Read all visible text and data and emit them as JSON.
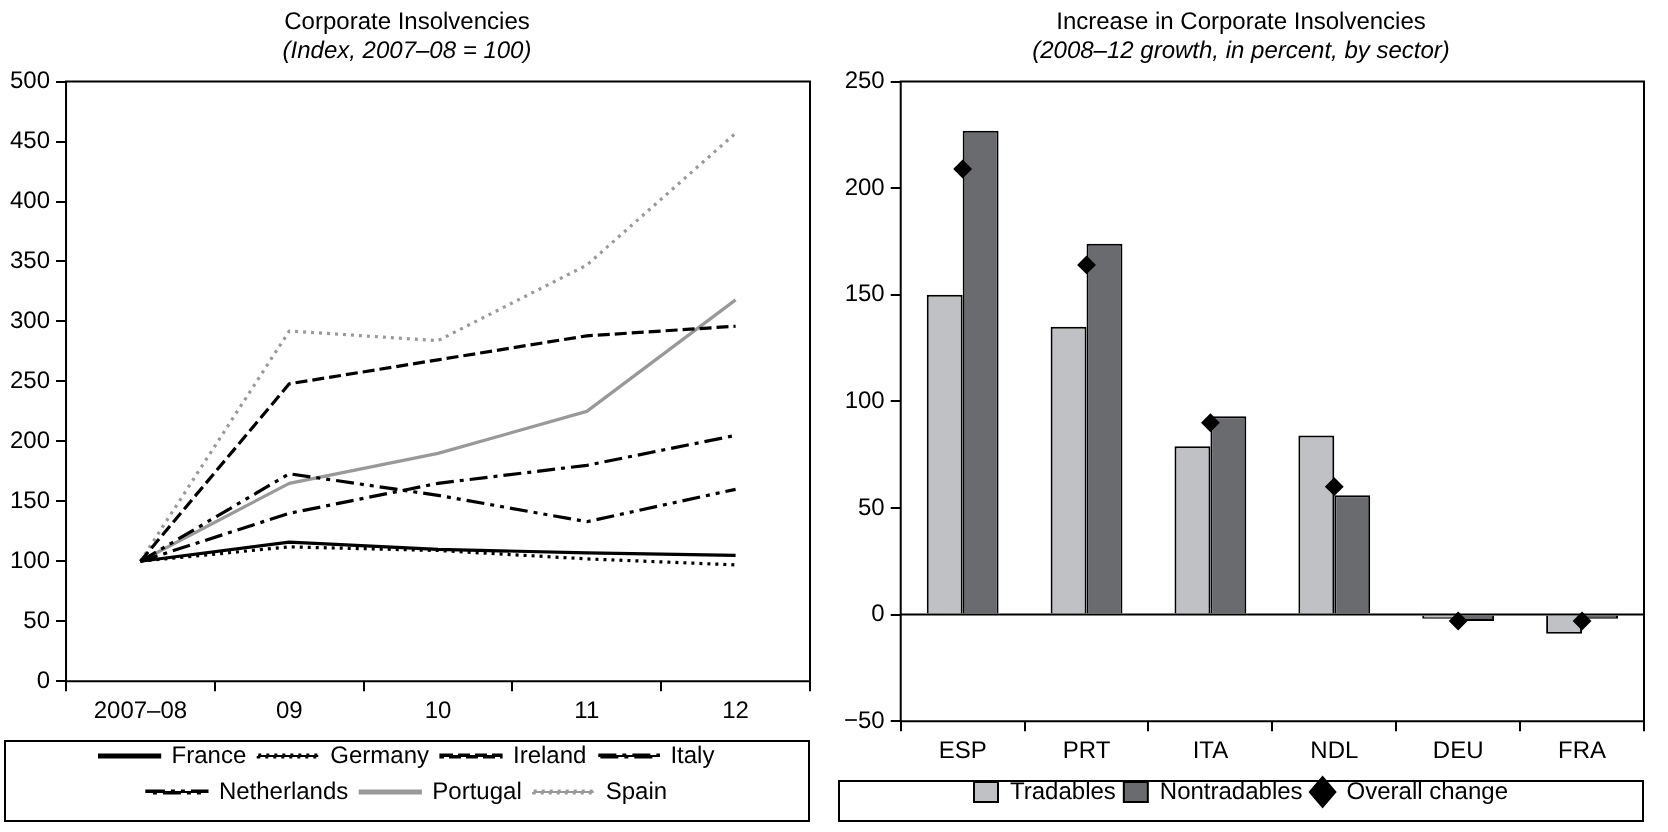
{
  "chart_data": [
    {
      "type": "line",
      "title": "Corporate Insolvencies",
      "subtitle": "(Index, 2007–08 = 100)",
      "categories": [
        "2007–08",
        "09",
        "10",
        "11",
        "12"
      ],
      "ylim": [
        0,
        500
      ],
      "yticks": [
        0,
        50,
        100,
        150,
        200,
        250,
        300,
        350,
        400,
        450,
        500
      ],
      "grid": false,
      "legend": "bottom",
      "marker": "none",
      "series": [
        {
          "name": "France",
          "color": "#000000",
          "line_style": "solid",
          "values": [
            100,
            116,
            110,
            107,
            105
          ]
        },
        {
          "name": "Germany",
          "color": "#000000",
          "line_style": "dotted",
          "values": [
            100,
            112,
            109,
            102,
            97
          ]
        },
        {
          "name": "Ireland",
          "color": "#000000",
          "line_style": "dashed",
          "values": [
            100,
            248,
            268,
            288,
            296
          ]
        },
        {
          "name": "Italy",
          "color": "#000000",
          "line_style": "dashdot",
          "values": [
            100,
            140,
            165,
            180,
            205
          ]
        },
        {
          "name": "Netherlands",
          "color": "#000000",
          "line_style": "dashdotdot",
          "values": [
            100,
            173,
            155,
            133,
            160
          ]
        },
        {
          "name": "Portugal",
          "color": "#999999",
          "line_style": "solid",
          "values": [
            100,
            165,
            190,
            225,
            318
          ]
        },
        {
          "name": "Spain",
          "color": "#999999",
          "line_style": "dotted",
          "values": [
            100,
            292,
            284,
            347,
            457
          ]
        }
      ]
    },
    {
      "type": "bar",
      "title": "Increase in Corporate Insolvencies",
      "subtitle": "(2008–12 growth, in percent, by sector)",
      "categories": [
        "ESP",
        "PRT",
        "ITA",
        "NDL",
        "DEU",
        "FRA"
      ],
      "ylim": [
        -50,
        250
      ],
      "yticks": [
        -50,
        0,
        50,
        100,
        150,
        200,
        250
      ],
      "grid": false,
      "legend": "bottom",
      "ref_lines": [
        {
          "axis": "y",
          "value": 0
        }
      ],
      "series": [
        {
          "name": "Tradables",
          "color": "#c0c1c4",
          "values": [
            150,
            135,
            79,
            84,
            -2,
            -9
          ]
        },
        {
          "name": "Nontradables",
          "color": "#6a6b6f",
          "values": [
            227,
            174,
            93,
            56,
            -3,
            -2
          ]
        },
        {
          "name": "Overall change",
          "type": "scatter",
          "marker": "diamond",
          "color": "#000000",
          "x": [
            "ESP",
            "PRT",
            "ITA",
            "NDL",
            "DEU",
            "FRA"
          ],
          "values": [
            209,
            164,
            90,
            60,
            -3,
            -3
          ]
        }
      ]
    }
  ]
}
